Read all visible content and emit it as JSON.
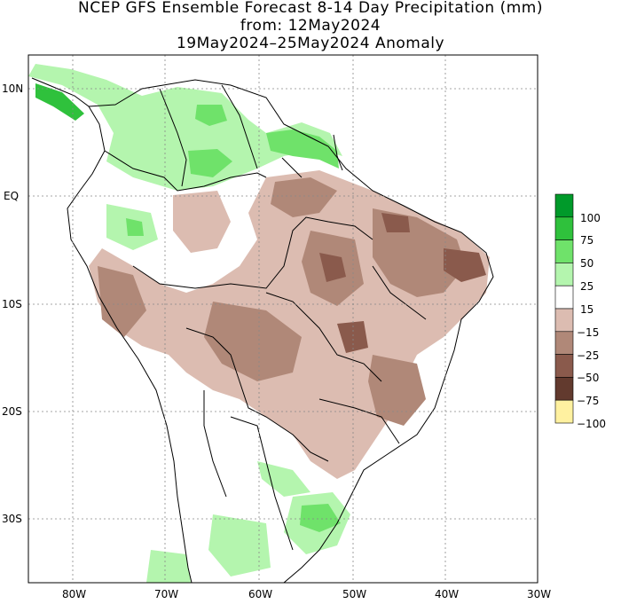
{
  "title": {
    "line1": "NCEP GFS Ensemble Forecast 8-14 Day Precipitation (mm)",
    "line2": "from: 12May2024",
    "line3": "19May2024–25May2024 Anomaly"
  },
  "axes": {
    "lat_labels": [
      "10N",
      "EQ",
      "10S",
      "20S",
      "30S"
    ],
    "lon_labels": [
      "80W",
      "70W",
      "60W",
      "50W",
      "40W",
      "30W"
    ]
  },
  "legend": {
    "labels": [
      "100",
      "75",
      "50",
      "25",
      "15",
      "−15",
      "−25",
      "−50",
      "−75",
      "−100"
    ],
    "colors": [
      "#009a2a",
      "#2fc13c",
      "#6fe26a",
      "#b4f5ae",
      "#ffffff",
      "#dcbcb1",
      "#b08878",
      "#8a5a4c",
      "#623a2e",
      "#fff1a0"
    ]
  },
  "colors": {
    "wet": "#b4f5ae",
    "wet_strong": "#6fe26a",
    "wet_max": "#2fc13c",
    "dry": "#dcbcb1",
    "dry_strong": "#b08878",
    "dry_max": "#8a5a4c"
  }
}
